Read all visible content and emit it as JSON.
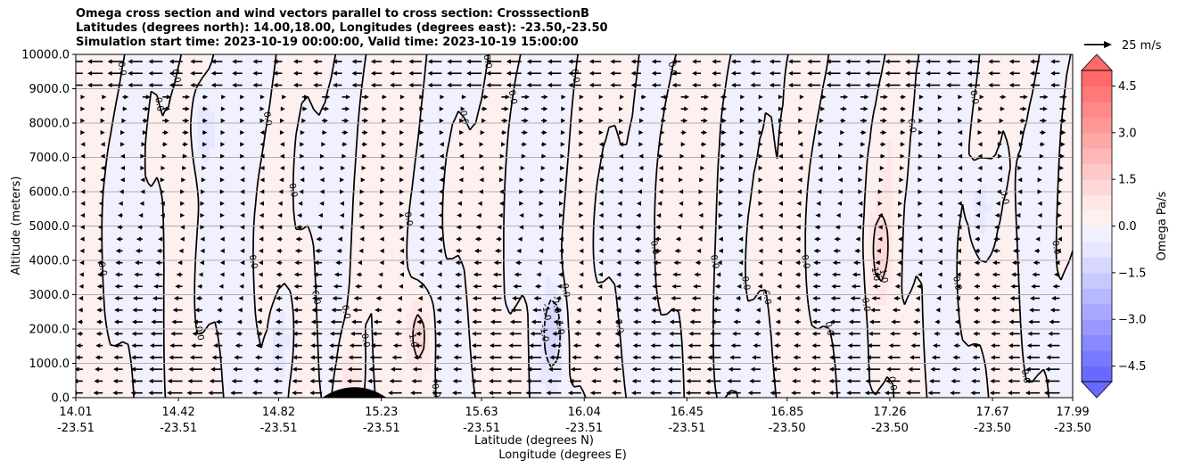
{
  "title": {
    "line1": "Omega cross section and wind vectors parallel to cross section: CrosssectionB",
    "line2": "Latitudes (degrees north): 14.00,18.00, Longitudes (degrees east): -23.50,-23.50",
    "line3": "Simulation start time: 2023-10-19 00:00:00, Valid time: 2023-10-19 15:00:00"
  },
  "chart_data": {
    "type": "heatmap",
    "subtype": "filled contour cross-section with wind vectors",
    "ylabel": "Altitude (meters)",
    "xlabel_lines": [
      "Latitude (degrees N)",
      "Longitude (degrees E)"
    ],
    "ylim": [
      0,
      10000
    ],
    "yticks": [
      "0.0",
      "1000.0",
      "2000.0",
      "3000.0",
      "4000.0",
      "5000.0",
      "6000.0",
      "7000.0",
      "8000.0",
      "9000.0",
      "10000.0"
    ],
    "ytick_values": [
      0,
      1000,
      2000,
      3000,
      4000,
      5000,
      6000,
      7000,
      8000,
      9000,
      10000
    ],
    "xlim": [
      14.01,
      17.99
    ],
    "xticks": [
      {
        "lat": "14.01",
        "lon": "-23.51"
      },
      {
        "lat": "14.42",
        "lon": "-23.51"
      },
      {
        "lat": "14.82",
        "lon": "-23.51"
      },
      {
        "lat": "15.23",
        "lon": "-23.51"
      },
      {
        "lat": "15.63",
        "lon": "-23.51"
      },
      {
        "lat": "16.04",
        "lon": "-23.51"
      },
      {
        "lat": "16.45",
        "lon": "-23.51"
      },
      {
        "lat": "16.85",
        "lon": "-23.50"
      },
      {
        "lat": "17.26",
        "lon": "-23.50"
      },
      {
        "lat": "17.67",
        "lon": "-23.50"
      },
      {
        "lat": "17.99",
        "lon": "-23.50"
      }
    ],
    "grid": "horizontal",
    "colorbar": {
      "label": "Omega Pa/s",
      "ticks": [
        "4.5",
        "3.0",
        "1.5",
        "0.0",
        "−1.5",
        "−3.0",
        "−4.5"
      ],
      "tick_values": [
        4.5,
        3.0,
        1.5,
        0.0,
        -1.5,
        -3.0,
        -4.5
      ],
      "range": [
        -5.0,
        5.0
      ],
      "colormap": "bwr",
      "extend": "both"
    },
    "quiver_key": {
      "label": "25 m/s",
      "speed": 25
    },
    "contour_levels": [
      -1.0,
      0.0,
      1.0
    ],
    "contour_label_values": [
      "0.0",
      "-1.0",
      "1.0"
    ],
    "omega_features": [
      {
        "lat": 15.38,
        "alt": 1900,
        "omega": 1.6
      },
      {
        "lat": 15.92,
        "alt": 1900,
        "omega": -1.4
      },
      {
        "lat": 17.62,
        "alt": 5500,
        "omega": -1.2
      },
      {
        "lat": 17.22,
        "alt": 4300,
        "omega": 1.1
      },
      {
        "lat": 14.51,
        "alt": 7900,
        "omega": -1.1
      },
      {
        "lat": 15.11,
        "alt": 500,
        "omega": 1.0
      },
      {
        "lat": 14.83,
        "alt": 1750,
        "omega": -1.0
      }
    ],
    "terrain": {
      "lat_center": 15.13,
      "peak_altitude": 350
    }
  },
  "colors": {
    "positive": "#ff0000",
    "negative": "#0000ff",
    "neutral": "#ffffff",
    "contour": "#000000",
    "gridline": "#b0b0b0",
    "terrain": "#000000"
  }
}
